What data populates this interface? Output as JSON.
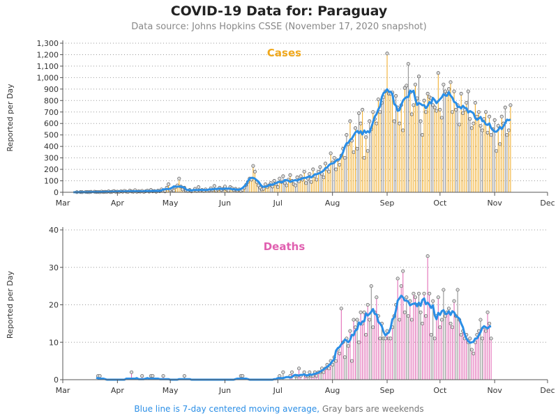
{
  "title": "COVID-19 Data for: Paraguay",
  "subtitle": "Data source: Johns Hopkins CSSE (November 17, 2020 snapshot)",
  "footnote": {
    "blue": "Blue line is 7-day centered moving average,",
    "gray": "Gray bars are weekends"
  },
  "colors": {
    "cases": "#f0a81c",
    "deaths": "#e060b0",
    "average": "#2a8ee6",
    "weekend": "#888888"
  },
  "chart_data": [
    {
      "type": "bar",
      "title": "Cases",
      "ylabel": "Reported per Day",
      "ylim": [
        0,
        1300
      ],
      "yticks": [
        0,
        100,
        200,
        300,
        400,
        500,
        600,
        700,
        800,
        900,
        1000,
        1100,
        1200,
        1300
      ],
      "ytick_labels": [
        "0",
        "100",
        "200",
        "300",
        "400",
        "500",
        "600",
        "700",
        "800",
        "900",
        "1,000",
        "1,100",
        "1,200",
        "1,300"
      ],
      "xlim": [
        "2020-03-01",
        "2020-12-01"
      ],
      "xtick_labels": [
        "Mar",
        "Apr",
        "May",
        "Jun",
        "Jul",
        "Aug",
        "Sep",
        "Oct",
        "Nov",
        "Dec"
      ],
      "grid": "horizontal dotted",
      "start_date": "2020-03-07",
      "values": [
        0,
        0,
        1,
        0,
        2,
        1,
        0,
        3,
        2,
        1,
        4,
        0,
        5,
        2,
        3,
        1,
        6,
        2,
        4,
        3,
        8,
        2,
        5,
        10,
        4,
        6,
        3,
        9,
        5,
        12,
        6,
        3,
        14,
        7,
        5,
        18,
        4,
        8,
        6,
        12,
        3,
        9,
        15,
        6,
        20,
        8,
        11,
        5,
        14,
        9,
        25,
        12,
        8,
        40,
        70,
        20,
        30,
        15,
        45,
        60,
        120,
        50,
        25,
        40,
        15,
        10,
        20,
        8,
        12,
        30,
        10,
        45,
        15,
        20,
        10,
        25,
        12,
        18,
        35,
        20,
        55,
        15,
        25,
        40,
        20,
        30,
        50,
        25,
        15,
        45,
        35,
        20,
        30,
        15,
        25,
        10,
        20,
        40,
        65,
        90,
        120,
        110,
        230,
        180,
        90,
        60,
        40,
        25,
        30,
        70,
        45,
        60,
        80,
        50,
        100,
        70,
        45,
        120,
        90,
        140,
        80,
        60,
        110,
        150,
        100,
        70,
        60,
        130,
        95,
        140,
        110,
        180,
        80,
        120,
        160,
        90,
        200,
        140,
        110,
        180,
        220,
        160,
        130,
        250,
        200,
        180,
        340,
        260,
        300,
        200,
        280,
        240,
        320,
        380,
        300,
        500,
        420,
        620,
        450,
        350,
        560,
        380,
        690,
        600,
        720,
        300,
        480,
        360,
        620,
        550,
        700,
        640,
        600,
        810,
        700,
        780,
        830,
        880,
        1210,
        860,
        860,
        870,
        620,
        840,
        740,
        600,
        760,
        540,
        910,
        930,
        1120,
        870,
        680,
        760,
        940,
        820,
        1010,
        620,
        500,
        800,
        700,
        860,
        830,
        820,
        760,
        740,
        710,
        1040,
        720,
        650,
        940,
        880,
        860,
        900,
        960,
        700,
        880,
        720,
        760,
        590,
        860,
        690,
        720,
        780,
        880,
        640,
        560,
        600,
        780,
        660,
        700,
        580,
        540,
        640,
        700,
        520,
        660,
        500,
        550,
        630,
        360,
        580,
        420,
        660,
        600,
        740,
        500,
        540,
        760
      ]
    },
    {
      "type": "bar",
      "title": "Deaths",
      "ylabel": "Reported per Day",
      "ylim": [
        0,
        40
      ],
      "yticks": [
        0,
        10,
        20,
        30,
        40
      ],
      "ytick_labels": [
        "0",
        "10",
        "20",
        "30",
        "40"
      ],
      "xlim": [
        "2020-03-01",
        "2020-12-01"
      ],
      "xtick_labels": [
        "Mar",
        "Apr",
        "May",
        "Jun",
        "Jul",
        "Aug",
        "Sep",
        "Oct",
        "Nov",
        "Dec"
      ],
      "grid": "horizontal dotted",
      "start_date": "2020-03-20",
      "values": [
        0,
        1,
        1,
        0,
        0,
        0,
        0,
        0,
        0,
        0,
        0,
        0,
        0,
        0,
        0,
        0,
        0,
        0,
        0,
        0,
        2,
        0,
        0,
        0,
        0,
        0,
        1,
        0,
        0,
        0,
        0,
        1,
        1,
        0,
        0,
        0,
        0,
        0,
        1,
        0,
        0,
        0,
        0,
        0,
        0,
        0,
        0,
        0,
        0,
        0,
        1,
        0,
        0,
        0,
        0,
        0,
        0,
        0,
        0,
        0,
        0,
        0,
        0,
        0,
        0,
        0,
        0,
        0,
        0,
        0,
        0,
        0,
        0,
        0,
        0,
        0,
        0,
        0,
        0,
        0,
        0,
        0,
        1,
        1,
        0,
        0,
        0,
        0,
        0,
        0,
        0,
        0,
        0,
        0,
        0,
        0,
        0,
        0,
        0,
        0,
        0,
        0,
        0,
        0,
        1,
        0,
        2,
        0,
        0,
        0,
        1,
        2,
        0,
        1,
        1,
        3,
        1,
        0,
        2,
        1,
        1,
        2,
        1,
        1,
        2,
        1,
        2,
        2,
        3,
        2,
        3,
        4,
        3,
        5,
        4,
        6,
        5,
        8,
        7,
        19,
        10,
        6,
        11,
        9,
        13,
        5,
        16,
        14,
        16,
        10,
        18,
        15,
        18,
        12,
        20,
        16,
        25,
        14,
        18,
        22,
        17,
        11,
        15,
        11,
        11,
        13,
        11,
        11,
        14,
        17,
        20,
        27,
        16,
        25,
        29,
        18,
        22,
        17,
        21,
        16,
        23,
        22,
        20,
        23,
        18,
        15,
        23,
        17,
        33,
        23,
        12,
        21,
        11,
        17,
        22,
        14,
        16,
        24,
        17,
        18,
        19,
        15,
        14,
        21,
        17,
        24,
        16,
        12,
        13,
        11,
        12,
        10,
        11,
        8,
        7,
        10,
        12,
        13,
        16,
        11,
        14,
        13,
        18,
        15,
        11
      ]
    }
  ]
}
